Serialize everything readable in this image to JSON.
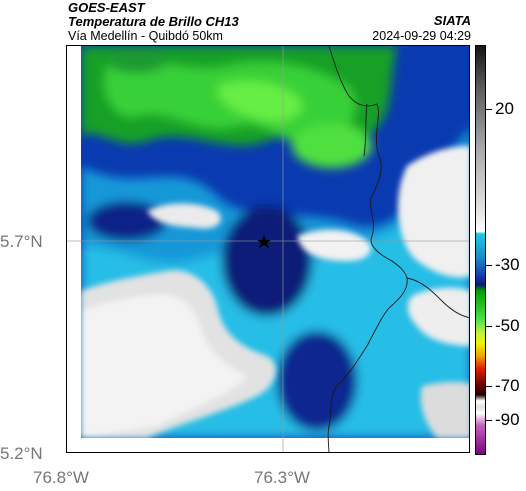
{
  "header": {
    "title_line1": "GOES-EAST",
    "title_line2": "Temperatura de Brillo CH13",
    "subtitle": "Vía Medellín - Quibdó 50km",
    "source": "SIATA",
    "timestamp": "2024-09-29 04:29"
  },
  "map": {
    "latitude_labels": [
      "5.7°N",
      "5.2°N"
    ],
    "longitude_labels": [
      "76.8°W",
      "76.3°W"
    ],
    "marker_icon": "star-icon"
  },
  "colorbar": {
    "tick_labels": [
      "20",
      "-30",
      "-50",
      "-70",
      "-90"
    ],
    "colors": {
      "gray_top": "#151515",
      "white": "#ffffff",
      "cyan": "#22c8e6",
      "blue": "#1030a0",
      "navy": "#0a1a70",
      "green": "#00a000",
      "yellow": "#f0f000",
      "red": "#e02000",
      "purple": "#800080"
    }
  }
}
